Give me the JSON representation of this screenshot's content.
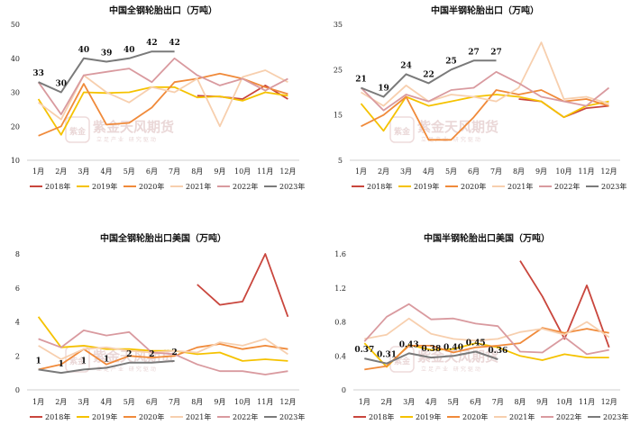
{
  "chart_data": [
    {
      "type": "line",
      "title": "中国全钢轮胎出口（万吨）",
      "categories": [
        "1月",
        "2月",
        "3月",
        "4月",
        "5月",
        "6月",
        "7月",
        "8月",
        "9月",
        "10月",
        "11月",
        "12月"
      ],
      "ylim": [
        10,
        50
      ],
      "yticks": [
        "10",
        "20",
        "30",
        "40",
        "50"
      ],
      "grid": false,
      "series": [
        {
          "name": "2018年",
          "color": "#c9463d",
          "values": [
            null,
            null,
            null,
            null,
            null,
            null,
            null,
            29,
            28.7,
            28,
            32,
            28
          ]
        },
        {
          "name": "2019年",
          "color": "#f5c200",
          "values": [
            28,
            17.5,
            30,
            29.8,
            30,
            31.5,
            31.5,
            28.5,
            28.8,
            27.5,
            30,
            29
          ]
        },
        {
          "name": "2020年",
          "color": "#f08a3a",
          "values": [
            17.2,
            20,
            32.5,
            20.5,
            21,
            25.5,
            33,
            34,
            35.5,
            34,
            31.5,
            29.5
          ]
        },
        {
          "name": "2021年",
          "color": "#f7cfae",
          "values": [
            27,
            22,
            35,
            30,
            27,
            31.5,
            30,
            34,
            20,
            34.5,
            36.5,
            33
          ]
        },
        {
          "name": "2022年",
          "color": "#d99a9f",
          "values": [
            33,
            23.5,
            35,
            36,
            37,
            33,
            40,
            35,
            32,
            34,
            30.5,
            34
          ]
        },
        {
          "name": "2023年",
          "color": "#7a7a7a",
          "values": [
            33,
            30,
            40,
            39,
            40,
            42,
            42,
            null,
            null,
            null,
            null,
            null
          ]
        }
      ],
      "labels": [
        "33",
        "30",
        "40",
        "39",
        "40",
        "42",
        "42"
      ],
      "legend": [
        "2018年",
        "2019年",
        "2020年",
        "2021年",
        "2022年",
        "2023年"
      ],
      "legend_position": "bottom"
    },
    {
      "type": "line",
      "title": "中国半钢轮胎出口（万吨）",
      "categories": [
        "1月",
        "2月",
        "3月",
        "4月",
        "5月",
        "6月",
        "7月",
        "8月",
        "9月",
        "10月",
        "11月",
        "12月"
      ],
      "ylim": [
        5,
        35
      ],
      "yticks": [
        "5",
        "15",
        "25",
        "35"
      ],
      "grid": false,
      "series": [
        {
          "name": "2018年",
          "color": "#c9463d",
          "values": [
            null,
            null,
            null,
            null,
            null,
            null,
            null,
            18.5,
            18,
            14.5,
            16.5,
            17
          ]
        },
        {
          "name": "2019年",
          "color": "#f5c200",
          "values": [
            17.5,
            11.5,
            19,
            17,
            18,
            19,
            19.5,
            19,
            18,
            14.5,
            17,
            18
          ]
        },
        {
          "name": "2020年",
          "color": "#f08a3a",
          "values": [
            12.5,
            15,
            19,
            9.5,
            9.5,
            14.5,
            20.5,
            19.5,
            20.5,
            18,
            18.5,
            17
          ]
        },
        {
          "name": "2021年",
          "color": "#f7cfae",
          "values": [
            20,
            17,
            21.5,
            18,
            19.5,
            19,
            18,
            21,
            31,
            18.5,
            19,
            17.5
          ]
        },
        {
          "name": "2022年",
          "color": "#d99a9f",
          "values": [
            21,
            16,
            19.5,
            18,
            20.5,
            21,
            24.5,
            22,
            19,
            18,
            17,
            21
          ]
        },
        {
          "name": "2023年",
          "color": "#7a7a7a",
          "values": [
            21,
            19,
            24,
            22,
            25,
            27,
            27,
            null,
            null,
            null,
            null,
            null
          ]
        }
      ],
      "labels": [
        "21",
        "19",
        "24",
        "22",
        "25",
        "27",
        "27"
      ],
      "legend": [
        "2018年",
        "2019年",
        "2020年",
        "2021年",
        "2022年",
        "2023年"
      ],
      "legend_position": "bottom"
    },
    {
      "type": "line",
      "title": "中国全钢轮胎出口美国（万吨）",
      "categories": [
        "1月",
        "2月",
        "3月",
        "4月",
        "5月",
        "6月",
        "7月",
        "8月",
        "9月",
        "10月",
        "11月",
        "12月"
      ],
      "ylim": [
        0,
        8
      ],
      "yticks": [
        "0",
        "2",
        "4",
        "6",
        "8"
      ],
      "grid": false,
      "series": [
        {
          "name": "2018年",
          "color": "#c9463d",
          "values": [
            null,
            null,
            null,
            null,
            null,
            null,
            null,
            6.2,
            5,
            5.2,
            8,
            4.3
          ]
        },
        {
          "name": "2019年",
          "color": "#f5c200",
          "values": [
            4.3,
            2.5,
            2.6,
            2.4,
            2.4,
            2.3,
            2.3,
            2.1,
            2.2,
            1.7,
            1.8,
            1.7
          ]
        },
        {
          "name": "2020年",
          "color": "#f08a3a",
          "values": [
            1.2,
            1.5,
            2.4,
            1.5,
            2.0,
            1.9,
            2.0,
            2.5,
            2.7,
            2.4,
            2.6,
            2.4
          ]
        },
        {
          "name": "2021年",
          "color": "#f7cfae",
          "values": [
            2.6,
            1.8,
            2.4,
            2.5,
            2.3,
            2.2,
            2.3,
            2.2,
            2.8,
            2.6,
            3.0,
            2.1
          ]
        },
        {
          "name": "2022年",
          "color": "#d99a9f",
          "values": [
            3.0,
            2.5,
            3.5,
            3.2,
            3.4,
            2.2,
            2.1,
            1.5,
            1.1,
            1.1,
            0.9,
            1.1
          ]
        },
        {
          "name": "2023年",
          "color": "#7a7a7a",
          "values": [
            1.2,
            1.0,
            1.2,
            1.3,
            1.6,
            1.6,
            1.7,
            null,
            null,
            null,
            null,
            null
          ]
        }
      ],
      "labels": [
        "1",
        "1",
        "1",
        "1",
        "2",
        "2",
        "2"
      ],
      "legend": [
        "2018年",
        "2019年",
        "2020年",
        "2021年",
        "2022年",
        "2023年"
      ],
      "legend_position": "bottom"
    },
    {
      "type": "line",
      "title": "中国半钢轮胎出口美国（万吨）",
      "categories": [
        "1月",
        "2月",
        "3月",
        "4月",
        "5月",
        "6月",
        "7月",
        "8月",
        "9月",
        "10月",
        "11月",
        "12月"
      ],
      "ylim": [
        0,
        1.6
      ],
      "yticks": [
        "0",
        "0.4",
        "0.8",
        "1.2",
        "1.6"
      ],
      "grid": false,
      "series": [
        {
          "name": "2018年",
          "color": "#c9463d",
          "values": [
            null,
            null,
            null,
            null,
            null,
            null,
            null,
            1.52,
            1.1,
            0.6,
            1.23,
            0.5
          ]
        },
        {
          "name": "2019年",
          "color": "#f5c200",
          "values": [
            0.55,
            0.27,
            0.53,
            0.47,
            0.48,
            0.55,
            0.5,
            0.4,
            0.35,
            0.42,
            0.38,
            0.38
          ]
        },
        {
          "name": "2020年",
          "color": "#f08a3a",
          "values": [
            0.24,
            0.28,
            0.52,
            0.52,
            0.44,
            0.5,
            0.52,
            0.55,
            0.73,
            0.67,
            0.72,
            0.67
          ]
        },
        {
          "name": "2021年",
          "color": "#f7cfae",
          "values": [
            0.6,
            0.65,
            0.84,
            0.66,
            0.6,
            0.58,
            0.6,
            0.68,
            0.72,
            0.65,
            0.8,
            0.62
          ]
        },
        {
          "name": "2022年",
          "color": "#d99a9f",
          "values": [
            0.57,
            0.86,
            1.01,
            0.83,
            0.84,
            0.78,
            0.75,
            0.45,
            0.44,
            0.62,
            0.42,
            0.47
          ]
        },
        {
          "name": "2023年",
          "color": "#7a7a7a",
          "values": [
            0.37,
            0.31,
            0.43,
            0.38,
            0.4,
            0.45,
            0.36,
            null,
            null,
            null,
            null,
            null
          ]
        }
      ],
      "labels": [
        "0.37",
        "0.31",
        "0.43",
        "0.38",
        "0.40",
        "0.45",
        "0.36"
      ],
      "legend": [
        "2018年",
        "2019年",
        "2020年",
        "2021年",
        "2022年",
        "2023年"
      ],
      "legend_position": "bottom"
    }
  ],
  "watermark": {
    "seal": "紫金",
    "name": "紫金天风期货",
    "slogan": "立足产业 研究驱动"
  }
}
